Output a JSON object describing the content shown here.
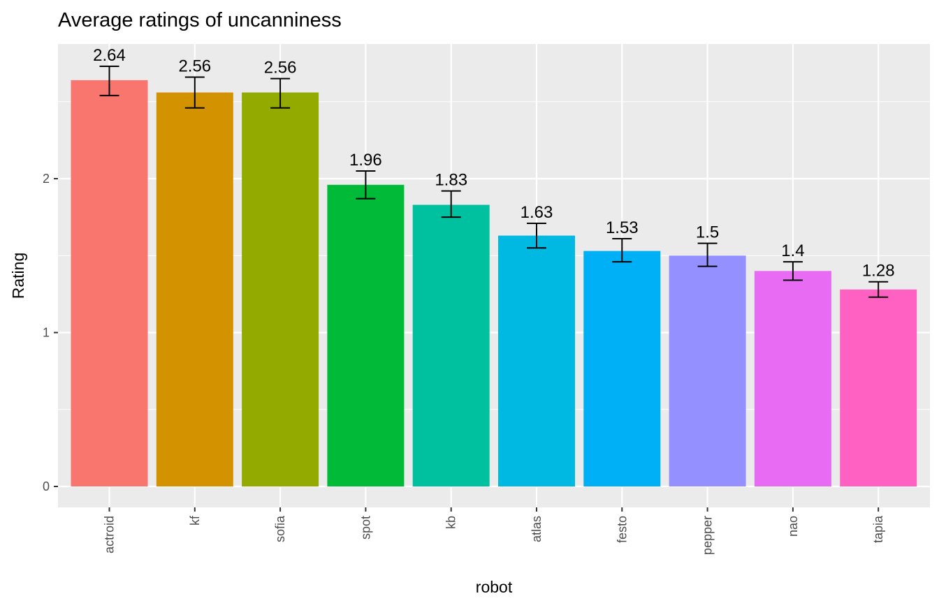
{
  "chart_data": {
    "type": "bar",
    "title": "Average ratings of uncanniness",
    "xlabel": "robot",
    "ylabel": "Rating",
    "ylim": [
      0,
      2.85
    ],
    "yticks": [
      0,
      1,
      2
    ],
    "grid": true,
    "legend": "none",
    "categories": [
      "actroid",
      "kf",
      "sofia",
      "spot",
      "kb",
      "atlas",
      "festo",
      "pepper",
      "nao",
      "tapia"
    ],
    "values": [
      2.64,
      2.56,
      2.56,
      1.96,
      1.83,
      1.63,
      1.53,
      1.5,
      1.4,
      1.28
    ],
    "value_labels": [
      "2.64",
      "2.56",
      "2.56",
      "1.96",
      "1.83",
      "1.63",
      "1.53",
      "1.5",
      "1.4",
      "1.28"
    ],
    "error_low": [
      2.54,
      2.46,
      2.46,
      1.87,
      1.75,
      1.55,
      1.46,
      1.43,
      1.34,
      1.23
    ],
    "error_high": [
      2.73,
      2.66,
      2.65,
      2.05,
      1.92,
      1.71,
      1.61,
      1.58,
      1.46,
      1.33
    ],
    "colors": [
      "#F8766D",
      "#D39200",
      "#93AA00",
      "#00BA38",
      "#00C19F",
      "#00B9E3",
      "#00B0F6",
      "#9590FF",
      "#E76BF3",
      "#FF61C3"
    ]
  }
}
